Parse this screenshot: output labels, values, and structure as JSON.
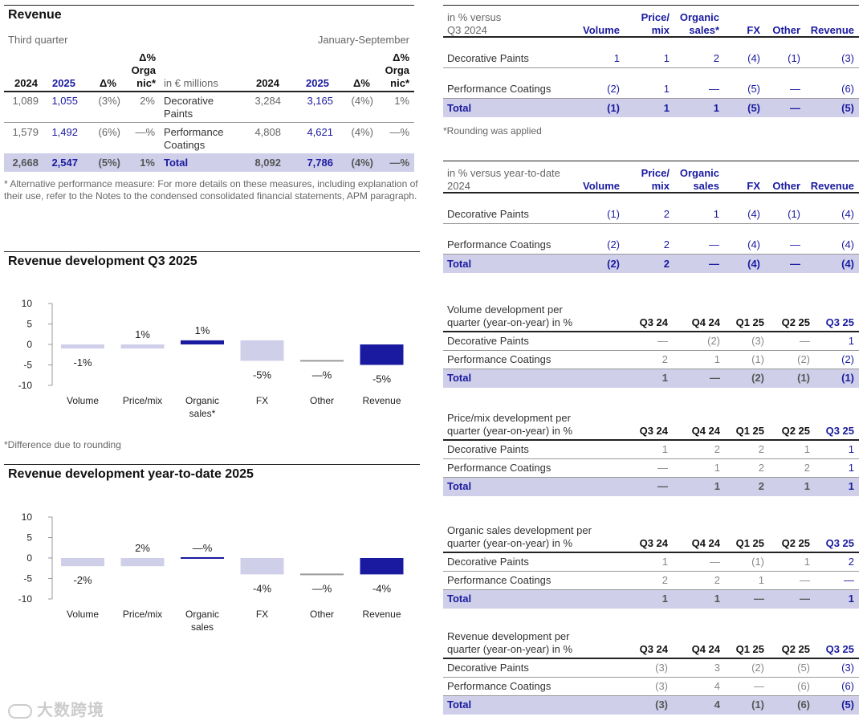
{
  "revenue_table": {
    "title": "Revenue",
    "third_quarter_label": "Third quarter",
    "ytd_label": "January-September",
    "col_2024": "2024",
    "col_2025": "2025",
    "col_delta": "Δ%",
    "col_delta_org_1": "Δ%",
    "col_delta_org_2": "Orga",
    "col_delta_org_3": "nic*",
    "unit": "in € millions",
    "rows": [
      {
        "q24": "1,089",
        "q25": "1,055",
        "qd": "(3%)",
        "qo": "2%",
        "label1": "Decorative",
        "label2": "Paints",
        "y24": "3,284",
        "y25": "3,165",
        "yd": "(4%)",
        "yo": "1%"
      },
      {
        "q24": "1,579",
        "q25": "1,492",
        "qd": "(6%)",
        "qo": "—%",
        "label1": "Performance",
        "label2": "Coatings",
        "y24": "4,808",
        "y25": "4,621",
        "yd": "(4%)",
        "yo": "—%"
      },
      {
        "q24": "2,668",
        "q25": "2,547",
        "qd": "(5%)",
        "qo": "1%",
        "label1": "Total",
        "label2": "",
        "y24": "8,092",
        "y25": "7,786",
        "yd": "(4%)",
        "yo": "—%"
      }
    ],
    "footnote": "* Alternative performance measure: For more details on these measures, including explanation of their use, refer to the Notes to the condensed consolidated financial statements, APM paragraph."
  },
  "chart_q3": {
    "title": "Revenue development Q3 2025",
    "note": "*Difference due to rounding"
  },
  "chart_ytd": {
    "title": "Revenue development year-to-date 2025"
  },
  "chart_data": [
    {
      "type": "bar",
      "title": "Revenue development Q3 2025",
      "categories": [
        "Volume",
        "Price/mix",
        "Organic sales*",
        "FX",
        "Other",
        "Revenue"
      ],
      "values": [
        -1,
        1,
        1,
        -5,
        0,
        -5
      ],
      "labels": [
        "-1%",
        "1%",
        "1%",
        "-5%",
        "—%",
        "-5%"
      ],
      "bar_base": [
        0,
        -1,
        0,
        1,
        -4,
        0
      ],
      "ylim": [
        -10,
        10
      ],
      "yticks": [
        "10",
        "5",
        "0",
        "-5",
        "-10"
      ],
      "colors": [
        "#cfcfea",
        "#cfcfea",
        "#1a1aa0",
        "#cfcfea",
        "#cfcfea",
        "#1a1aa0"
      ]
    },
    {
      "type": "bar",
      "title": "Revenue development year-to-date 2025",
      "categories": [
        "Volume",
        "Price/mix",
        "Organic sales",
        "FX",
        "Other",
        "Revenue"
      ],
      "values": [
        -2,
        2,
        0,
        -4,
        0,
        -4
      ],
      "labels": [
        "-2%",
        "2%",
        "—%",
        "-4%",
        "—%",
        "-4%"
      ],
      "bar_base": [
        0,
        -2,
        0,
        0,
        -4,
        0
      ],
      "ylim": [
        -10,
        10
      ],
      "yticks": [
        "10",
        "5",
        "0",
        "-5",
        "-10"
      ],
      "colors": [
        "#cfcfea",
        "#cfcfea",
        "#1a1aa0",
        "#cfcfea",
        "#cfcfea",
        "#1a1aa0"
      ]
    }
  ],
  "bridge_q3": {
    "h1a": "in % versus",
    "h1b": "Q3 2024",
    "cols": [
      [
        "",
        "Volume"
      ],
      [
        "Price/",
        "mix"
      ],
      [
        "Organic",
        "sales*"
      ],
      [
        "",
        "FX"
      ],
      [
        "",
        "Other"
      ],
      [
        "",
        "Revenue"
      ]
    ],
    "rows": [
      {
        "label": "Decorative Paints",
        "v": [
          "1",
          "1",
          "2",
          "(4)",
          "(1)",
          "(3)"
        ]
      },
      {
        "label": "Performance Coatings",
        "v": [
          "(2)",
          "1",
          "—",
          "(5)",
          "—",
          "(6)"
        ]
      },
      {
        "label": "Total",
        "v": [
          "(1)",
          "1",
          "1",
          "(5)",
          "—",
          "(5)"
        ]
      }
    ],
    "note": "*Rounding was applied"
  },
  "bridge_ytd": {
    "h1a": "in % versus year-to-date",
    "h1b": "2024",
    "cols": [
      [
        "",
        "Volume"
      ],
      [
        "Price/",
        "mix"
      ],
      [
        "Organic",
        "sales"
      ],
      [
        "",
        "FX"
      ],
      [
        "",
        "Other"
      ],
      [
        "",
        "Revenue"
      ]
    ],
    "rows": [
      {
        "label": "Decorative Paints",
        "v": [
          "(1)",
          "2",
          "1",
          "(4)",
          "(1)",
          "(4)"
        ]
      },
      {
        "label": "Performance Coatings",
        "v": [
          "(2)",
          "2",
          "—",
          "(4)",
          "—",
          "(4)"
        ]
      },
      {
        "label": "Total",
        "v": [
          "(2)",
          "2",
          "—",
          "(4)",
          "—",
          "(4)"
        ]
      }
    ]
  },
  "quarterly": [
    {
      "h1": "Volume development per",
      "h2": "quarter (year-on-year) in %",
      "cols": [
        "Q3 24",
        "Q4 24",
        "Q1 25",
        "Q2 25",
        "Q3 25"
      ],
      "rows": [
        {
          "label": "Decorative Paints",
          "v": [
            "—",
            "(2)",
            "(3)",
            "—",
            "1"
          ]
        },
        {
          "label": "Performance Coatings",
          "v": [
            "2",
            "1",
            "(1)",
            "(2)",
            "(2)"
          ]
        },
        {
          "label": "Total",
          "v": [
            "1",
            "—",
            "(2)",
            "(1)",
            "(1)"
          ]
        }
      ]
    },
    {
      "h1": "Price/mix development per",
      "h2": "quarter (year-on-year) in %",
      "cols": [
        "Q3 24",
        "Q4 24",
        "Q1 25",
        "Q2 25",
        "Q3 25"
      ],
      "rows": [
        {
          "label": "Decorative Paints",
          "v": [
            "1",
            "2",
            "2",
            "1",
            "1"
          ]
        },
        {
          "label": "Performance Coatings",
          "v": [
            "—",
            "1",
            "2",
            "2",
            "1"
          ]
        },
        {
          "label": "Total",
          "v": [
            "—",
            "1",
            "2",
            "1",
            "1"
          ]
        }
      ]
    },
    {
      "h1": "Organic sales development per",
      "h2": "quarter (year-on-year) in %",
      "cols": [
        "Q3 24",
        "Q4 24",
        "Q1 25",
        "Q2 25",
        "Q3 25"
      ],
      "rows": [
        {
          "label": "Decorative Paints",
          "v": [
            "1",
            "—",
            "(1)",
            "1",
            "2"
          ]
        },
        {
          "label": "Performance Coatings",
          "v": [
            "2",
            "2",
            "1",
            "—",
            "—"
          ]
        },
        {
          "label": "Total",
          "v": [
            "1",
            "1",
            "—",
            "—",
            "1"
          ]
        }
      ]
    },
    {
      "h1": "Revenue development per",
      "h2": "quarter (year-on-year) in %",
      "cols": [
        "Q3 24",
        "Q4 24",
        "Q1 25",
        "Q2 25",
        "Q3 25"
      ],
      "rows": [
        {
          "label": "Decorative Paints",
          "v": [
            "(3)",
            "3",
            "(2)",
            "(5)",
            "(3)"
          ]
        },
        {
          "label": "Performance Coatings",
          "v": [
            "(3)",
            "4",
            "—",
            "(6)",
            "(6)"
          ]
        },
        {
          "label": "Total",
          "v": [
            "(3)",
            "4",
            "(1)",
            "(6)",
            "(5)"
          ]
        }
      ]
    }
  ],
  "watermark": "大数跨境"
}
